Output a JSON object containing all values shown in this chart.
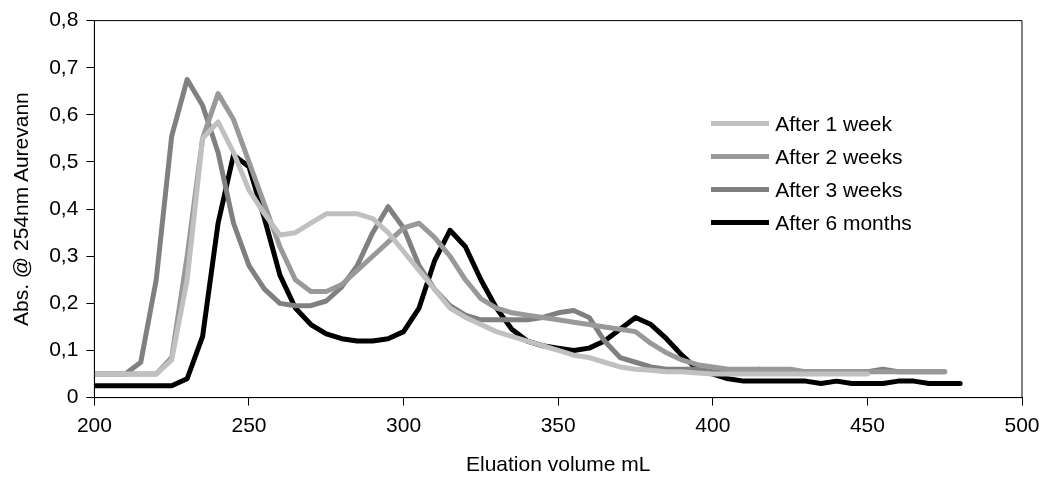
{
  "chart_data": {
    "type": "line",
    "xlabel": "Eluation volume mL",
    "ylabel": "Abs. @ 254nm Aurevann",
    "x": [
      200,
      205,
      210,
      215,
      220,
      225,
      230,
      235,
      240,
      245,
      250,
      255,
      260,
      265,
      270,
      275,
      280,
      285,
      290,
      295,
      300,
      305,
      310,
      315,
      320,
      325,
      330,
      335,
      340,
      345,
      350,
      355,
      360,
      365,
      370,
      375,
      380,
      385,
      390,
      395,
      400,
      405,
      410,
      415,
      420,
      425,
      430,
      435,
      440,
      445,
      450,
      455,
      460,
      465,
      470,
      475,
      480
    ],
    "series": [
      {
        "name": "After 1 week",
        "color": "#c0c0c0",
        "values": [
          0.05,
          0.05,
          0.05,
          0.05,
          0.05,
          0.08,
          0.25,
          0.55,
          0.585,
          0.52,
          0.44,
          0.39,
          0.345,
          0.35,
          0.37,
          0.39,
          0.39,
          0.39,
          0.38,
          0.35,
          0.31,
          0.27,
          0.23,
          0.19,
          0.17,
          0.155,
          0.14,
          0.13,
          0.12,
          0.11,
          0.1,
          0.09,
          0.085,
          0.075,
          0.065,
          0.06,
          0.058,
          0.055,
          0.055,
          0.052,
          0.05,
          0.05,
          0.05,
          0.05,
          0.05,
          0.05,
          0.05,
          0.05,
          0.05,
          0.05,
          0.05,
          null,
          null,
          null,
          null,
          null,
          null
        ]
      },
      {
        "name": "After 2 weeks",
        "color": "#999999",
        "values": [
          0.05,
          0.05,
          0.05,
          0.05,
          0.05,
          0.085,
          0.3,
          0.55,
          0.645,
          0.59,
          0.5,
          0.41,
          0.32,
          0.25,
          0.225,
          0.225,
          0.24,
          0.27,
          0.3,
          0.33,
          0.36,
          0.37,
          0.34,
          0.3,
          0.25,
          0.21,
          0.19,
          0.18,
          0.175,
          0.17,
          0.165,
          0.16,
          0.155,
          0.15,
          0.145,
          0.14,
          0.115,
          0.095,
          0.08,
          0.07,
          0.065,
          0.06,
          0.06,
          0.06,
          0.06,
          0.06,
          0.055,
          0.055,
          0.055,
          0.055,
          0.055,
          0.055,
          0.055,
          0.055,
          0.055,
          0.055,
          null
        ]
      },
      {
        "name": "After 3 weeks",
        "color": "#808080",
        "values": [
          0.05,
          0.05,
          0.05,
          0.075,
          0.25,
          0.555,
          0.675,
          0.62,
          0.52,
          0.37,
          0.28,
          0.23,
          0.2,
          0.195,
          0.195,
          0.205,
          0.235,
          0.28,
          0.35,
          0.405,
          0.36,
          0.28,
          0.23,
          0.195,
          0.175,
          0.165,
          0.165,
          0.165,
          0.165,
          0.17,
          0.18,
          0.185,
          0.17,
          0.12,
          0.085,
          0.075,
          0.065,
          0.06,
          0.06,
          0.06,
          0.055,
          0.055,
          0.055,
          0.06,
          0.055,
          0.055,
          0.055,
          0.055,
          0.055,
          0.055,
          0.055,
          0.06,
          0.055,
          0.055,
          0.055,
          0.055,
          null
        ]
      },
      {
        "name": "After 6 months",
        "color": "#000000",
        "values": [
          0.025,
          0.025,
          0.025,
          0.025,
          0.025,
          0.025,
          0.04,
          0.13,
          0.37,
          0.515,
          0.49,
          0.38,
          0.26,
          0.19,
          0.155,
          0.135,
          0.125,
          0.12,
          0.12,
          0.125,
          0.14,
          0.19,
          0.29,
          0.355,
          0.32,
          0.25,
          0.19,
          0.145,
          0.12,
          0.11,
          0.105,
          0.1,
          0.105,
          0.12,
          0.145,
          0.17,
          0.155,
          0.125,
          0.09,
          0.06,
          0.05,
          0.04,
          0.035,
          0.035,
          0.035,
          0.035,
          0.035,
          0.03,
          0.035,
          0.03,
          0.03,
          0.03,
          0.035,
          0.035,
          0.03,
          0.03,
          0.03
        ]
      }
    ],
    "xlim": [
      200,
      500
    ],
    "xticks": [
      200,
      250,
      300,
      350,
      400,
      450,
      500
    ],
    "ylim": [
      0,
      0.8
    ],
    "yticks": [
      0,
      {
        "value": 0.1,
        "label": "0,1"
      },
      {
        "value": 0.2,
        "label": "0,2"
      },
      {
        "value": 0.3,
        "label": "0,3"
      },
      {
        "value": 0.4,
        "label": "0,4"
      },
      {
        "value": 0.5,
        "label": "0,5"
      },
      {
        "value": 0.6,
        "label": "0,6"
      },
      {
        "value": 0.7,
        "label": "0,7"
      },
      {
        "value": 0.8,
        "label": "0,8"
      }
    ],
    "grid": false,
    "legend": "right",
    "marker": "none",
    "line_style": "solid"
  }
}
